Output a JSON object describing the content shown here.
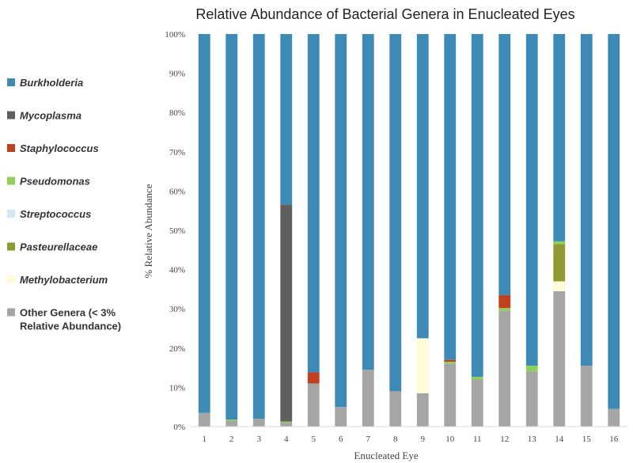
{
  "chart_data": {
    "type": "bar",
    "stacked": true,
    "title": "Relative Abundance of Bacterial Genera in Enucleated Eyes",
    "xlabel": "Enucleated Eye",
    "ylabel": "% Relative Abundance",
    "ylim": [
      0,
      100
    ],
    "yticks": [
      "0%",
      "10%",
      "20%",
      "30%",
      "40%",
      "50%",
      "60%",
      "70%",
      "80%",
      "90%",
      "100%"
    ],
    "categories": [
      "1",
      "2",
      "3",
      "4",
      "5",
      "6",
      "7",
      "8",
      "9",
      "10",
      "11",
      "12",
      "13",
      "14",
      "15",
      "16"
    ],
    "series": [
      {
        "name": "Other Genera (< 3% Relative Abundance)",
        "color": "#a5a5a5",
        "italic": false,
        "values": [
          3.5,
          1.5,
          2,
          1,
          11,
          5,
          14.5,
          9,
          8.5,
          16,
          12,
          29.5,
          14,
          34.5,
          15.5,
          4.5
        ]
      },
      {
        "name": "Methylobacterium",
        "color": "#fdfbd8",
        "italic": true,
        "values": [
          0,
          0,
          0,
          0,
          0,
          0,
          0,
          0,
          14,
          0,
          0,
          0,
          0,
          2.5,
          0,
          0
        ]
      },
      {
        "name": "Pasteurellaceae",
        "color": "#8f9b32",
        "italic": true,
        "values": [
          0,
          0,
          0,
          0,
          0,
          0,
          0,
          0,
          0,
          0,
          0,
          0,
          0,
          9.5,
          0,
          0
        ]
      },
      {
        "name": "Streptococcus",
        "color": "#d3e8f1",
        "italic": true,
        "values": [
          0,
          0,
          0,
          0,
          0,
          0,
          0,
          0,
          0,
          0,
          0,
          0,
          0,
          0,
          0,
          0
        ]
      },
      {
        "name": "Pseudomonas",
        "color": "#8fd05a",
        "italic": true,
        "values": [
          0,
          0.3,
          0,
          0.3,
          0,
          0,
          0,
          0,
          0,
          0.5,
          0.7,
          0.7,
          1.5,
          0.7,
          0,
          0
        ]
      },
      {
        "name": "Staphylococcus",
        "color": "#c0401f",
        "italic": true,
        "values": [
          0,
          0,
          0,
          0,
          2.8,
          0,
          0,
          0,
          0,
          0.5,
          0,
          3.3,
          0,
          0,
          0,
          0
        ]
      },
      {
        "name": "Mycoplasma",
        "color": "#5f5f5f",
        "italic": true,
        "values": [
          0,
          0,
          0,
          55.3,
          0,
          0,
          0,
          0,
          0,
          0,
          0,
          0,
          0,
          0,
          0,
          0
        ]
      },
      {
        "name": "Burkholderia",
        "color": "#3d8ab7",
        "italic": true,
        "values": [
          96.5,
          98.2,
          98,
          43.4,
          86.2,
          95,
          85.5,
          91,
          77.5,
          83,
          87.3,
          66.5,
          84.5,
          52.8,
          84.5,
          95.5
        ]
      }
    ],
    "legend": {
      "position": "left",
      "order": [
        "Burkholderia",
        "Mycoplasma",
        "Staphylococcus",
        "Pseudomonas",
        "Streptococcus",
        "Pasteurellaceae",
        "Methylobacterium",
        "Other Genera (< 3% Relative Abundance)"
      ],
      "other_label_lines": [
        "Other Genera (< 3%",
        "Relative Abundance)"
      ]
    }
  }
}
